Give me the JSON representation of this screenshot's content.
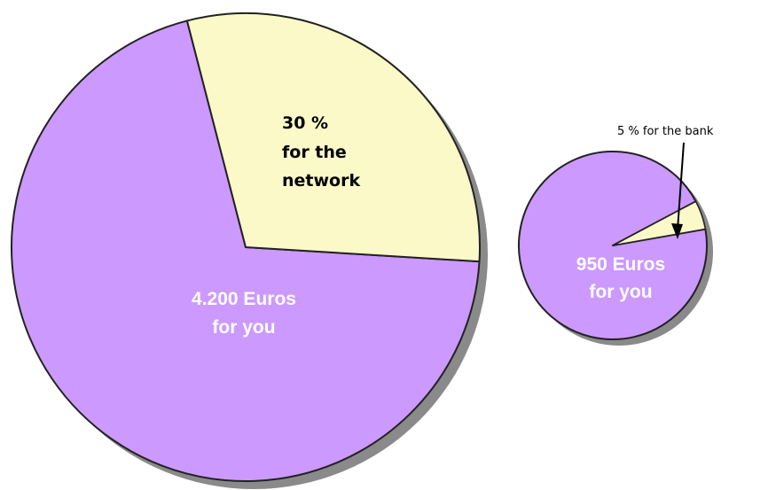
{
  "chart_data": [
    {
      "type": "pie",
      "slices": [
        {
          "label": "for the network",
          "value": 30,
          "unit": "%",
          "color": "#fbf9c8"
        },
        {
          "label": "for you",
          "value": 70,
          "unit": "%",
          "color": "#cc99ff"
        }
      ],
      "annotations": {
        "network_lines": [
          "30 %",
          "for the",
          "network"
        ],
        "you_lines": [
          "4.200 Euros",
          "for you"
        ]
      }
    },
    {
      "type": "pie",
      "slices": [
        {
          "label": "for the bank",
          "value": 5,
          "unit": "%",
          "color": "#fbf9c8"
        },
        {
          "label": "for you",
          "value": 95,
          "unit": "%",
          "color": "#cc99ff"
        }
      ],
      "annotations": {
        "bank_label": "5 % for the bank",
        "you_lines": [
          "950 Euros",
          "for you"
        ]
      }
    }
  ],
  "colors": {
    "you": "#cc99ff",
    "share": "#fbf9c8",
    "outline": "#222222",
    "shadow": "#8a8a8a"
  }
}
